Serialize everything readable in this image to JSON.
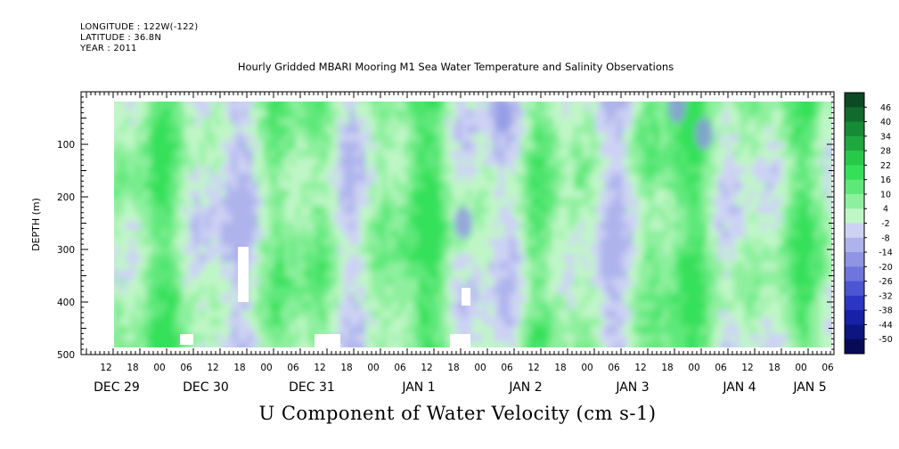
{
  "header": {
    "longitude": "LONGITUDE : 122W(-122)",
    "latitude": "LATITUDE : 36.8N",
    "year": "YEAR : 2011",
    "title": "Hourly Gridded MBARI Mooring M1 Sea Water Temperature and Salinity Observations"
  },
  "chart_data": {
    "type": "heatmap",
    "title": "Hourly Gridded MBARI Mooring M1 Sea Water Temperature and Salinity Observations",
    "subtitle": "U Component of Water Velocity (cm s-1)",
    "ylabel": "DEPTH (m)",
    "xlabel": "",
    "ylim": [
      500,
      0
    ],
    "y_ticks": [
      100,
      200,
      300,
      400,
      500
    ],
    "x_hour_ticks": [
      "12",
      "18",
      "00",
      "06",
      "12",
      "18",
      "00",
      "06",
      "12",
      "18",
      "00",
      "06",
      "12",
      "18",
      "00",
      "06",
      "12",
      "18",
      "00",
      "06",
      "12",
      "18",
      "00",
      "06",
      "12",
      "18",
      "00",
      "06"
    ],
    "x_date_labels": [
      "DEC 29",
      "DEC 30",
      "DEC 31",
      "JAN  1",
      "JAN  2",
      "JAN  3",
      "JAN  4",
      "JAN  5"
    ],
    "colorbar_labels": [
      "46",
      "40",
      "34",
      "28",
      "22",
      "16",
      "10",
      "4",
      "-2",
      "-8",
      "-14",
      "-20",
      "-26",
      "-32",
      "-38",
      "-44",
      "-50"
    ],
    "colorbar_colors": [
      "#0b4a22",
      "#116b2c",
      "#178a36",
      "#1fa83f",
      "#27c94a",
      "#34e05a",
      "#5fe87a",
      "#8ef09e",
      "#bff6c6",
      "#cdd2f4",
      "#aeb3ec",
      "#8f95e4",
      "#6e75dc",
      "#4c55d2",
      "#2c36c4",
      "#1620a8",
      "#0d1580",
      "#070b55"
    ],
    "series": [],
    "grid": false
  }
}
